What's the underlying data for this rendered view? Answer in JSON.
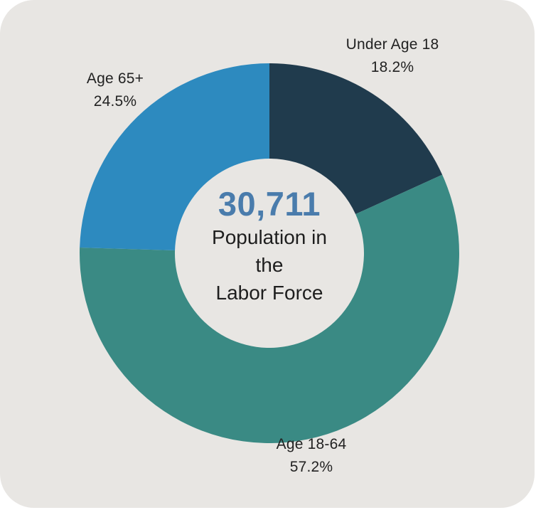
{
  "page": {
    "background_color": "#ffffff",
    "card_color": "#e8e6e3"
  },
  "chart_data": {
    "type": "pie",
    "subtype": "donut",
    "title": "",
    "legend": "none",
    "labels_position": "outside",
    "start_angle_deg": 0,
    "direction": "clockwise",
    "donut_hole_ratio": 0.5,
    "center": {
      "value": "30,711",
      "value_color": "#4a7cac",
      "label": "Population in the Labor Force",
      "label_lines": [
        "Population in",
        "the",
        "Labor Force"
      ]
    },
    "slices": [
      {
        "label": "Under Age 18",
        "value": 18.2,
        "pct_label": "18.2%",
        "color": "#203b4d"
      },
      {
        "label": "Age 18-64",
        "value": 57.2,
        "pct_label": "57.2%",
        "color": "#3a8a84"
      },
      {
        "label": "Age 65+",
        "value": 24.5,
        "pct_label": "24.5%",
        "color": "#2d8abf"
      }
    ]
  }
}
